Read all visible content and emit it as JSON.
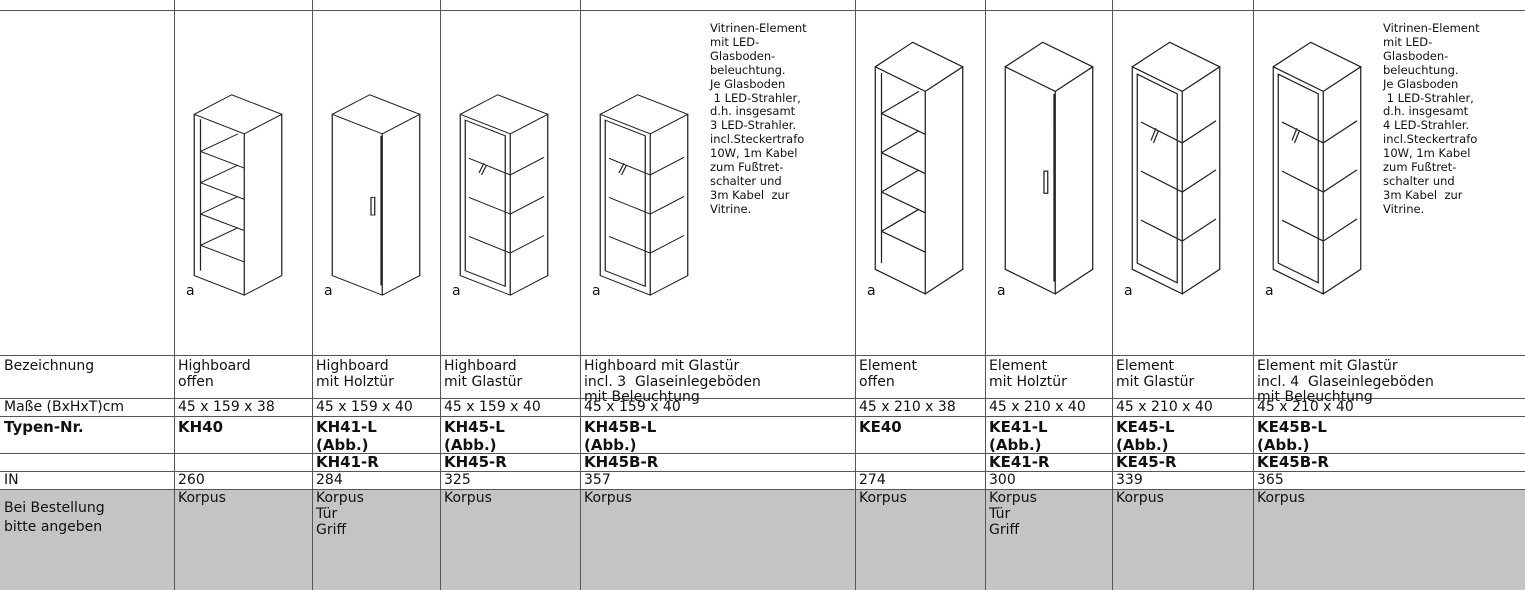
{
  "row_labels": {
    "bezeichnung": "Bezeichnung",
    "masse": "Maße (BxHxT)cm",
    "typen": "Typen-Nr.",
    "in": "IN",
    "bestellung": [
      "Bei Bestellung",
      "bitte angeben"
    ]
  },
  "columns": [
    {
      "image_label": "a",
      "bezeichnung": [
        "Highboard",
        "offen"
      ],
      "masse": "45 x 159 x 38",
      "typ": [
        "KH40"
      ],
      "in": 260,
      "bestellung": [
        "Korpus"
      ]
    },
    {
      "image_label": "a",
      "bezeichnung": [
        "Highboard",
        "mit Holztür"
      ],
      "masse": "45 x 159 x 40",
      "typ": [
        "KH41-L",
        "(Abb.)"
      ],
      "typ2": "KH41-R",
      "in": 284,
      "bestellung": [
        "Korpus",
        "Tür",
        "Griff"
      ]
    },
    {
      "image_label": "a",
      "bezeichnung": [
        "Highboard",
        "mit Glastür"
      ],
      "masse": "45 x 159 x 40",
      "typ": [
        "KH45-L",
        "(Abb.)"
      ],
      "typ2": "KH45-R",
      "in": 325,
      "bestellung": [
        "Korpus"
      ]
    },
    {
      "image_label": "a",
      "description": [
        "Vitrinen-Element",
        "mit LED-",
        "Glasboden-",
        "beleuchtung.",
        "Je Glasboden",
        " 1 LED-Strahler,",
        "d.h. insgesamt",
        "3 LED-Strahler.",
        "incl.Steckertrafo",
        "10W, 1m Kabel",
        "zum Fußtret-",
        "schalter und",
        "3m Kabel  zur",
        "Vitrine."
      ],
      "bezeichnung": [
        "Highboard mit Glastür",
        "incl. 3  Glaseinlegeböden",
        "mit Beleuchtung"
      ],
      "masse": "45 x 159 x 40",
      "typ": [
        "KH45B-L",
        "(Abb.)"
      ],
      "typ2": "KH45B-R",
      "in": 357,
      "bestellung": [
        "Korpus"
      ]
    },
    {
      "image_label": "a",
      "bezeichnung": [
        "Element",
        "offen"
      ],
      "masse": "45 x 210 x 38",
      "typ": [
        "KE40"
      ],
      "in": 274,
      "bestellung": [
        "Korpus"
      ]
    },
    {
      "image_label": "a",
      "bezeichnung": [
        "Element",
        "mit Holztür"
      ],
      "masse": "45 x 210 x 40",
      "typ": [
        "KE41-L",
        "(Abb.)"
      ],
      "typ2": "KE41-R",
      "in": 300,
      "bestellung": [
        "Korpus",
        "Tür",
        "Griff"
      ]
    },
    {
      "image_label": "a",
      "bezeichnung": [
        "Element",
        "mit Glastür"
      ],
      "masse": "45 x 210 x 40",
      "typ": [
        "KE45-L",
        "(Abb.)"
      ],
      "typ2": "KE45-R",
      "in": 339,
      "bestellung": [
        "Korpus"
      ]
    },
    {
      "image_label": "a",
      "description": [
        "Vitrinen-Element",
        "mit LED-",
        "Glasboden-",
        "beleuchtung.",
        "Je Glasboden",
        " 1 LED-Strahler,",
        "d.h. insgesamt",
        "4 LED-Strahler.",
        "incl.Steckertrafo",
        "10W, 1m Kabel",
        "zum Fußtret-",
        "schalter und",
        "3m Kabel  zur",
        "Vitrine."
      ],
      "bezeichnung": [
        "Element mit Glastür",
        "incl. 4  Glaseinlegeböden",
        "mit Beleuchtung"
      ],
      "masse": "45 x 210 x 40",
      "typ": [
        "KE45B-L",
        "(Abb.)"
      ],
      "typ2": "KE45B-R",
      "in": 365,
      "bestellung": [
        "Korpus"
      ]
    }
  ]
}
